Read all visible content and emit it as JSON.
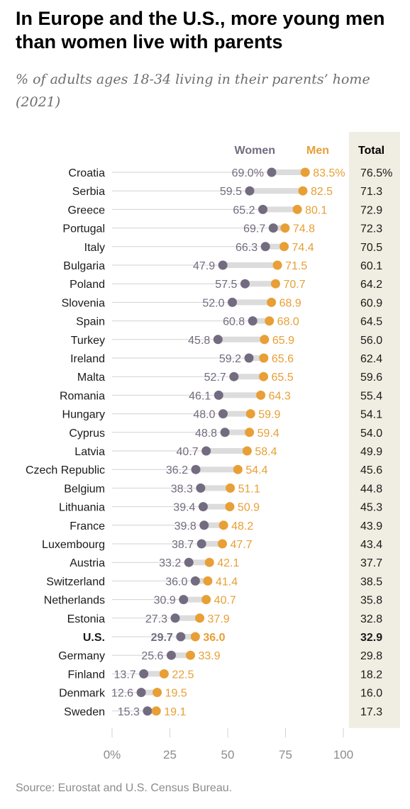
{
  "title": "In Europe and the U.S., more young men than women live with parents",
  "subtitle": "% of adults ages 18-34 living in their parents’ home (2021)",
  "source": "Source: Eurostat and U.S. Census Bureau.",
  "colors": {
    "women": "#736b7f",
    "men": "#e89f36",
    "total_panel": "#f0eee2",
    "connector": "#dcdcdc",
    "gridline": "#d2d2d2",
    "tick_text": "#8c8c8c",
    "label_text": "#1a1a1a"
  },
  "chart_data": {
    "type": "dot",
    "legend": {
      "women": "Women",
      "men": "Men",
      "total": "Total"
    },
    "x_ticks": [
      "0%",
      "25",
      "50",
      "75",
      "100"
    ],
    "xlim": [
      0,
      100
    ],
    "highlight": "U.S.",
    "categories": [
      "Croatia",
      "Serbia",
      "Greece",
      "Portugal",
      "Italy",
      "Bulgaria",
      "Poland",
      "Slovenia",
      "Spain",
      "Turkey",
      "Ireland",
      "Malta",
      "Romania",
      "Hungary",
      "Cyprus",
      "Latvia",
      "Czech Republic",
      "Belgium",
      "Lithuania",
      "France",
      "Luxembourg",
      "Austria",
      "Switzerland",
      "Netherlands",
      "Estonia",
      "U.S.",
      "Germany",
      "Finland",
      "Denmark",
      "Sweden"
    ],
    "women": [
      69.0,
      59.5,
      65.2,
      69.7,
      66.3,
      47.9,
      57.5,
      52.0,
      60.8,
      45.8,
      59.2,
      52.7,
      46.1,
      48.0,
      48.8,
      40.7,
      36.2,
      38.3,
      39.4,
      39.8,
      38.7,
      33.2,
      36.0,
      30.9,
      27.3,
      29.7,
      25.6,
      13.7,
      12.6,
      15.3
    ],
    "men": [
      83.5,
      82.5,
      80.1,
      74.8,
      74.4,
      71.5,
      70.7,
      68.9,
      68.0,
      65.9,
      65.6,
      65.5,
      64.3,
      59.9,
      59.4,
      58.4,
      54.4,
      51.1,
      50.9,
      48.2,
      47.7,
      42.1,
      41.4,
      40.7,
      37.9,
      36.0,
      33.9,
      22.5,
      19.5,
      19.1
    ],
    "total": [
      76.5,
      71.3,
      72.9,
      72.3,
      70.5,
      60.1,
      64.2,
      60.9,
      64.5,
      56.0,
      62.4,
      59.6,
      55.4,
      54.1,
      54.0,
      49.9,
      45.6,
      44.8,
      45.3,
      43.9,
      43.4,
      37.7,
      38.5,
      35.8,
      32.8,
      32.9,
      29.8,
      18.2,
      16.0,
      17.3
    ],
    "women_labels": [
      "69.0%",
      "59.5",
      "65.2",
      "69.7",
      "66.3",
      "47.9",
      "57.5",
      "52.0",
      "60.8",
      "45.8",
      "59.2",
      "52.7",
      "46.1",
      "48.0",
      "48.8",
      "40.7",
      "36.2",
      "38.3",
      "39.4",
      "39.8",
      "38.7",
      "33.2",
      "36.0",
      "30.9",
      "27.3",
      "29.7",
      "25.6",
      "13.7",
      "12.6",
      "15.3"
    ],
    "men_labels": [
      "83.5%",
      "82.5",
      "80.1",
      "74.8",
      "74.4",
      "71.5",
      "70.7",
      "68.9",
      "68.0",
      "65.9",
      "65.6",
      "65.5",
      "64.3",
      "59.9",
      "59.4",
      "58.4",
      "54.4",
      "51.1",
      "50.9",
      "48.2",
      "47.7",
      "42.1",
      "41.4",
      "40.7",
      "37.9",
      "36.0",
      "33.9",
      "22.5",
      "19.5",
      "19.1"
    ],
    "total_labels": [
      "76.5%",
      "71.3",
      "72.9",
      "72.3",
      "70.5",
      "60.1",
      "64.2",
      "60.9",
      "64.5",
      "56.0",
      "62.4",
      "59.6",
      "55.4",
      "54.1",
      "54.0",
      "49.9",
      "45.6",
      "44.8",
      "45.3",
      "43.9",
      "43.4",
      "37.7",
      "38.5",
      "35.8",
      "32.8",
      "32.9",
      "29.8",
      "18.2",
      "16.0",
      "17.3"
    ]
  }
}
